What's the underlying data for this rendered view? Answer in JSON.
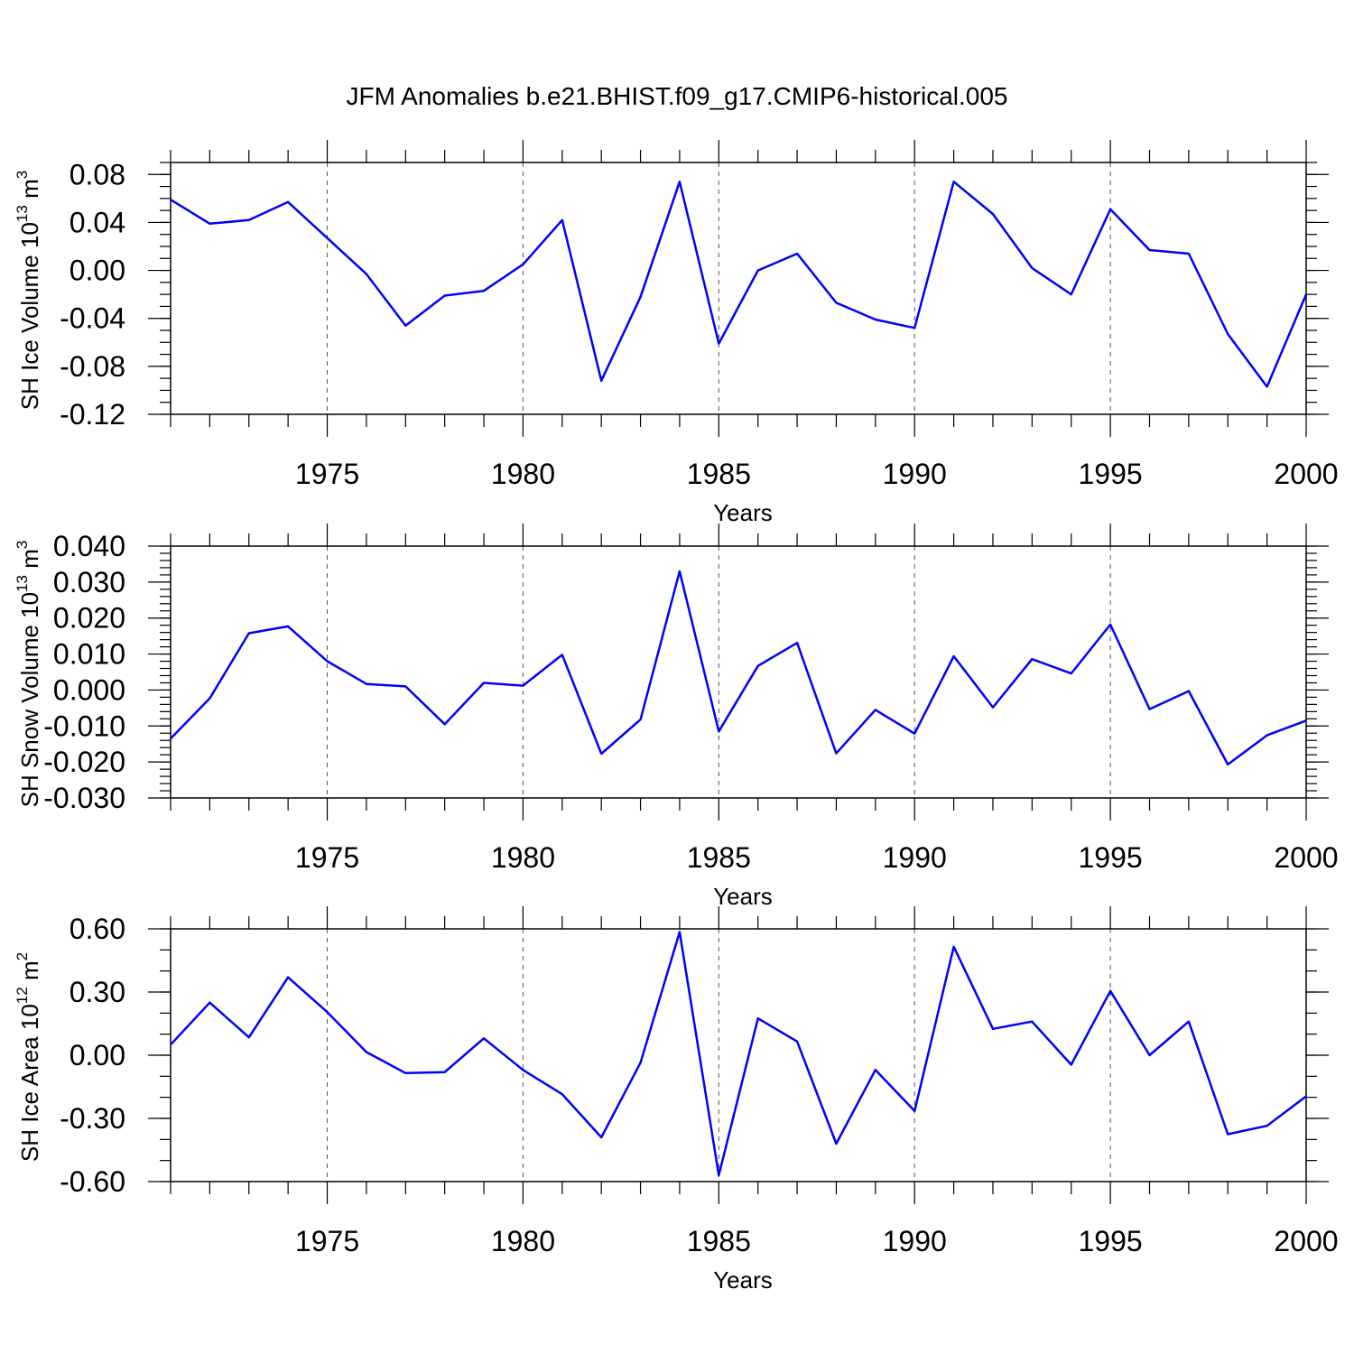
{
  "title": "JFM Anomalies b.e21.BHIST.f09_g17.CMIP6-historical.005",
  "colors": {
    "line": "#0000ff",
    "axis": "#000000",
    "grid": "#555555"
  },
  "chart_data": [
    {
      "type": "line",
      "name": "ice-volume",
      "ylabel": "SH Ice Volume 10",
      "ylabel_sup": "13",
      "ylabel_unit": "m",
      "ylabel_unit_sup": "3",
      "xlabel": "Years",
      "xlim": [
        1971,
        2000
      ],
      "ylim": [
        -0.12,
        0.09
      ],
      "yticks": [
        -0.12,
        -0.08,
        -0.04,
        0.0,
        0.04,
        0.08
      ],
      "ytick_labels": [
        "-0.12",
        "-0.08",
        "-0.04",
        "0.00",
        "0.04",
        "0.08"
      ],
      "yminor_step": 0.01,
      "xticks": [
        1975,
        1980,
        1985,
        1990,
        1995,
        2000
      ],
      "xtick_labels": [
        "1975",
        "1980",
        "1985",
        "1990",
        "1995",
        "2000"
      ],
      "grid_x": true,
      "x": [
        1971,
        1972,
        1973,
        1974,
        1975,
        1976,
        1977,
        1978,
        1979,
        1980,
        1981,
        1982,
        1983,
        1984,
        1985,
        1986,
        1987,
        1988,
        1989,
        1990,
        1991,
        1992,
        1993,
        1994,
        1995,
        1996,
        1997,
        1998,
        1999,
        2000
      ],
      "values": [
        0.059,
        0.039,
        0.042,
        0.057,
        0.027,
        -0.003,
        -0.046,
        -0.021,
        -0.017,
        0.005,
        0.042,
        -0.092,
        -0.022,
        0.074,
        -0.061,
        0.0,
        0.014,
        -0.027,
        -0.041,
        -0.048,
        0.074,
        0.047,
        0.002,
        -0.02,
        0.051,
        0.017,
        0.014,
        -0.053,
        -0.097,
        -0.02
      ]
    },
    {
      "type": "line",
      "name": "snow-volume",
      "ylabel": "SH Snow Volume 10",
      "ylabel_sup": "13",
      "ylabel_unit": "m",
      "ylabel_unit_sup": "3",
      "xlabel": "Years",
      "xlim": [
        1971,
        2000
      ],
      "ylim": [
        -0.03,
        0.04
      ],
      "yticks": [
        -0.03,
        -0.02,
        -0.01,
        0.0,
        0.01,
        0.02,
        0.03,
        0.04
      ],
      "ytick_labels": [
        "-0.030",
        "-0.020",
        "-0.010",
        "0.000",
        "0.010",
        "0.020",
        "0.030",
        "0.040"
      ],
      "yminor_step": 0.002,
      "xticks": [
        1975,
        1980,
        1985,
        1990,
        1995,
        2000
      ],
      "xtick_labels": [
        "1975",
        "1980",
        "1985",
        "1990",
        "1995",
        "2000"
      ],
      "grid_x": true,
      "x": [
        1971,
        1972,
        1973,
        1974,
        1975,
        1976,
        1977,
        1978,
        1979,
        1980,
        1981,
        1982,
        1983,
        1984,
        1985,
        1986,
        1987,
        1988,
        1989,
        1990,
        1991,
        1992,
        1993,
        1994,
        1995,
        1996,
        1997,
        1998,
        1999,
        2000
      ],
      "values": [
        -0.0135,
        -0.0023,
        0.0158,
        0.0177,
        0.008,
        0.0017,
        0.001,
        -0.0095,
        0.002,
        0.0012,
        0.0098,
        -0.0177,
        -0.0082,
        0.033,
        -0.0115,
        0.0067,
        0.0131,
        -0.0176,
        -0.0055,
        -0.0121,
        0.0094,
        -0.0048,
        0.0086,
        0.0046,
        0.0182,
        -0.0053,
        -0.0003,
        -0.0207,
        -0.0126,
        -0.0085
      ]
    },
    {
      "type": "line",
      "name": "ice-area",
      "ylabel": "SH Ice Area 10",
      "ylabel_sup": "12",
      "ylabel_unit": "m",
      "ylabel_unit_sup": "2",
      "xlabel": "Years",
      "xlim": [
        1971,
        2000
      ],
      "ylim": [
        -0.6,
        0.6
      ],
      "yticks": [
        -0.6,
        -0.3,
        0.0,
        0.3,
        0.6
      ],
      "ytick_labels": [
        "-0.60",
        "-0.30",
        "0.00",
        "0.30",
        "0.60"
      ],
      "yminor_step": 0.1,
      "xticks": [
        1975,
        1980,
        1985,
        1990,
        1995,
        2000
      ],
      "xtick_labels": [
        "1975",
        "1980",
        "1985",
        "1990",
        "1995",
        "2000"
      ],
      "grid_x": true,
      "x": [
        1971,
        1972,
        1973,
        1974,
        1975,
        1976,
        1977,
        1978,
        1979,
        1980,
        1981,
        1982,
        1983,
        1984,
        1985,
        1986,
        1987,
        1988,
        1989,
        1990,
        1991,
        1992,
        1993,
        1994,
        1995,
        1996,
        1997,
        1998,
        1999,
        2000
      ],
      "values": [
        0.05,
        0.25,
        0.085,
        0.37,
        0.205,
        0.015,
        -0.085,
        -0.08,
        0.08,
        -0.07,
        -0.185,
        -0.39,
        -0.035,
        0.585,
        -0.57,
        0.175,
        0.065,
        -0.42,
        -0.07,
        -0.265,
        0.515,
        0.125,
        0.16,
        -0.045,
        0.305,
        0.0,
        0.16,
        -0.375,
        -0.335,
        -0.195
      ]
    }
  ]
}
